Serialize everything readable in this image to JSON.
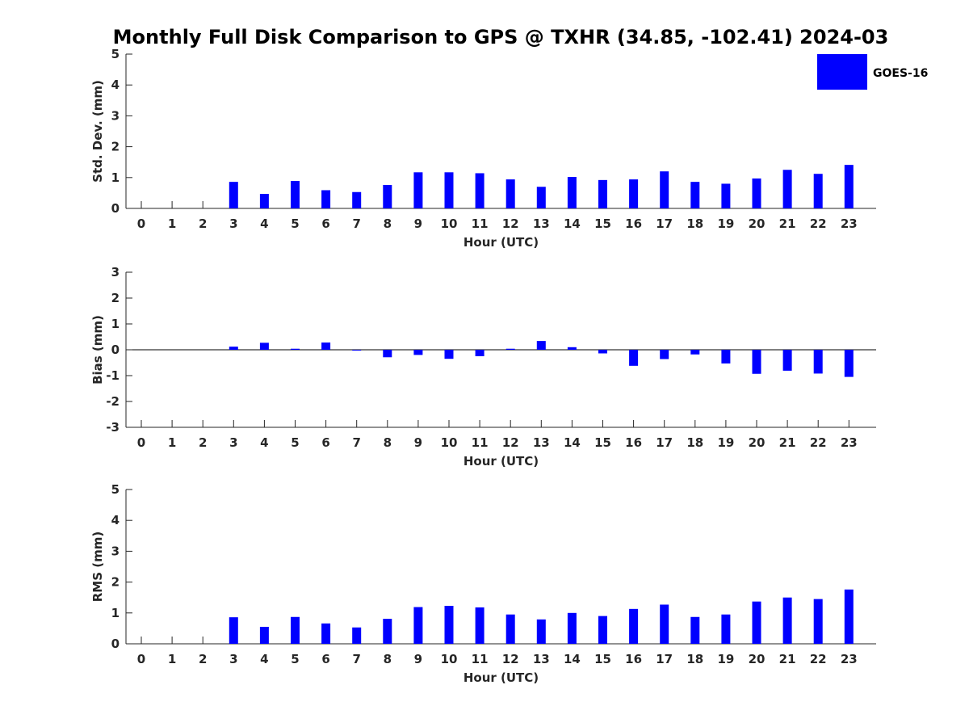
{
  "figure": {
    "title": "Monthly Full Disk Comparison to GPS @ TXHR (34.85, -102.41) 2024-03"
  },
  "legend": {
    "label": "GOES-16",
    "color": "#0000ff"
  },
  "chart_data": [
    {
      "type": "bar",
      "id": "stddev",
      "xlabel": "Hour (UTC)",
      "ylabel": "Std. Dev. (mm)",
      "ylim": [
        0,
        5
      ],
      "yticks": [
        0,
        1,
        2,
        3,
        4,
        5
      ],
      "categories": [
        "0",
        "1",
        "2",
        "3",
        "4",
        "5",
        "6",
        "7",
        "8",
        "9",
        "10",
        "11",
        "12",
        "13",
        "14",
        "15",
        "16",
        "17",
        "18",
        "19",
        "20",
        "21",
        "22",
        "23"
      ],
      "series": [
        {
          "name": "GOES-16",
          "color": "#0000ff",
          "values": [
            null,
            null,
            null,
            0.86,
            0.47,
            0.89,
            0.59,
            0.53,
            0.76,
            1.17,
            1.17,
            1.14,
            0.94,
            0.7,
            1.02,
            0.92,
            0.94,
            1.2,
            0.86,
            0.8,
            0.97,
            1.25,
            1.12,
            1.41
          ]
        }
      ],
      "grid": false
    },
    {
      "type": "bar",
      "id": "bias",
      "xlabel": "Hour (UTC)",
      "ylabel": "Bias (mm)",
      "ylim": [
        -3,
        3
      ],
      "yticks": [
        -3,
        -2,
        -1,
        0,
        1,
        2,
        3
      ],
      "categories": [
        "0",
        "1",
        "2",
        "3",
        "4",
        "5",
        "6",
        "7",
        "8",
        "9",
        "10",
        "11",
        "12",
        "13",
        "14",
        "15",
        "16",
        "17",
        "18",
        "19",
        "20",
        "21",
        "22",
        "23"
      ],
      "series": [
        {
          "name": "GOES-16",
          "color": "#0000ff",
          "values": [
            null,
            null,
            null,
            0.12,
            0.27,
            0.04,
            0.28,
            -0.02,
            -0.29,
            -0.2,
            -0.35,
            -0.25,
            0.04,
            0.34,
            0.1,
            -0.14,
            -0.62,
            -0.36,
            -0.18,
            -0.53,
            -0.93,
            -0.81,
            -0.92,
            -1.05
          ]
        }
      ],
      "grid": false
    },
    {
      "type": "bar",
      "id": "rms",
      "xlabel": "Hour (UTC)",
      "ylabel": "RMS (mm)",
      "ylim": [
        0,
        5
      ],
      "yticks": [
        0,
        1,
        2,
        3,
        4,
        5
      ],
      "categories": [
        "0",
        "1",
        "2",
        "3",
        "4",
        "5",
        "6",
        "7",
        "8",
        "9",
        "10",
        "11",
        "12",
        "13",
        "14",
        "15",
        "16",
        "17",
        "18",
        "19",
        "20",
        "21",
        "22",
        "23"
      ],
      "series": [
        {
          "name": "GOES-16",
          "color": "#0000ff",
          "values": [
            null,
            null,
            null,
            0.86,
            0.55,
            0.87,
            0.66,
            0.53,
            0.81,
            1.19,
            1.23,
            1.18,
            0.95,
            0.79,
            1.0,
            0.9,
            1.13,
            1.27,
            0.87,
            0.95,
            1.37,
            1.5,
            1.45,
            1.76
          ]
        }
      ],
      "grid": false
    }
  ]
}
